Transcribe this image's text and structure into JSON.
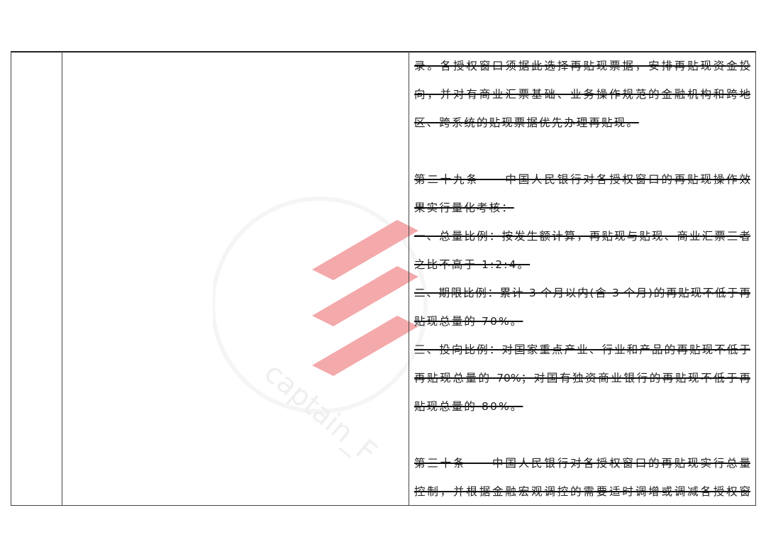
{
  "watermark": {
    "text": "captain_F",
    "color": "#f07c80"
  },
  "lines": [
    "录。各授权窗口须据此选择再贴现票据，安排再贴现资金投",
    "向，并对有商业汇票基础、业务操作规范的金融机构和跨地",
    "区、跨系统的贴现票据优先办理再贴现。",
    "第二十九条　　中国人民银行对各授权窗口的再贴现操作效",
    "果实行量化考核：",
    "一、总量比例：按发生额计算，再贴现与贴现、商业汇票三者",
    "之比不高于 1:2:4。",
    "二、期限比例：累计 3 个月以内(含 3 个月)的再贴现不低于再",
    "贴现总量的 70%。",
    "三、投向比例：对国家重点产业、行业和产品的再贴现不低于",
    "再贴现总量的 70%；对国有独资商业银行的再贴现不低于再",
    "贴现总量的 80%。",
    "第三十条　　中国人民银行对各授权窗口的再贴现实行总量",
    "控制，并根据金融宏观调控的需要适时调增或调减各授权窗"
  ]
}
